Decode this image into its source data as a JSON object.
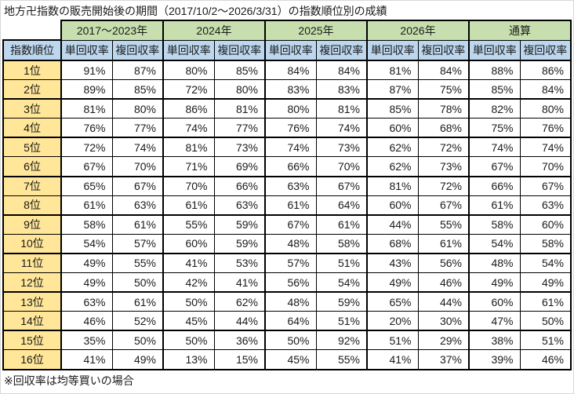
{
  "title": "地方卍指数の販売開始後の期間（2017/10/2～2026/3/31）の指数順位別の成績",
  "footnote": "※回収率は均等買いの場合",
  "colors": {
    "year_header_bg": "#C7DFAE",
    "sub_header_bg": "#BDD7EE",
    "rank_bg": "#FFE699",
    "border": "#000000",
    "canvas_border": "#D8D8D8"
  },
  "chart_data": {
    "type": "table",
    "title": "地方卍指数の販売開始後の期間（2017/10/2～2026/3/31）の指数順位別の成績",
    "rank_column_header": "指数順位",
    "year_groups": [
      "2017～2023年",
      "2024年",
      "2025年",
      "2026年",
      "通算"
    ],
    "sub_headers": [
      "単回収率",
      "複回収率"
    ],
    "rows": [
      {
        "rank": "1位",
        "values": [
          "91%",
          "87%",
          "80%",
          "85%",
          "84%",
          "84%",
          "81%",
          "84%",
          "88%",
          "86%"
        ]
      },
      {
        "rank": "2位",
        "values": [
          "89%",
          "85%",
          "72%",
          "80%",
          "83%",
          "83%",
          "87%",
          "75%",
          "85%",
          "84%"
        ]
      },
      {
        "rank": "3位",
        "values": [
          "81%",
          "80%",
          "86%",
          "81%",
          "80%",
          "81%",
          "85%",
          "78%",
          "82%",
          "80%"
        ]
      },
      {
        "rank": "4位",
        "values": [
          "76%",
          "77%",
          "74%",
          "77%",
          "76%",
          "74%",
          "60%",
          "68%",
          "75%",
          "76%"
        ]
      },
      {
        "rank": "5位",
        "values": [
          "72%",
          "74%",
          "81%",
          "73%",
          "74%",
          "73%",
          "62%",
          "72%",
          "74%",
          "74%"
        ]
      },
      {
        "rank": "6位",
        "values": [
          "67%",
          "70%",
          "71%",
          "69%",
          "66%",
          "70%",
          "62%",
          "73%",
          "67%",
          "70%"
        ]
      },
      {
        "rank": "7位",
        "values": [
          "65%",
          "67%",
          "70%",
          "66%",
          "63%",
          "67%",
          "81%",
          "72%",
          "66%",
          "67%"
        ]
      },
      {
        "rank": "8位",
        "values": [
          "61%",
          "63%",
          "61%",
          "63%",
          "61%",
          "64%",
          "60%",
          "67%",
          "61%",
          "63%"
        ]
      },
      {
        "rank": "9位",
        "values": [
          "58%",
          "61%",
          "55%",
          "59%",
          "67%",
          "61%",
          "44%",
          "55%",
          "58%",
          "60%"
        ]
      },
      {
        "rank": "10位",
        "values": [
          "54%",
          "57%",
          "60%",
          "59%",
          "48%",
          "58%",
          "68%",
          "61%",
          "54%",
          "58%"
        ]
      },
      {
        "rank": "11位",
        "values": [
          "49%",
          "55%",
          "41%",
          "53%",
          "57%",
          "51%",
          "43%",
          "56%",
          "48%",
          "54%"
        ]
      },
      {
        "rank": "12位",
        "values": [
          "49%",
          "50%",
          "42%",
          "41%",
          "56%",
          "54%",
          "49%",
          "46%",
          "49%",
          "49%"
        ]
      },
      {
        "rank": "13位",
        "values": [
          "63%",
          "61%",
          "50%",
          "62%",
          "48%",
          "59%",
          "65%",
          "44%",
          "60%",
          "61%"
        ]
      },
      {
        "rank": "14位",
        "values": [
          "46%",
          "52%",
          "45%",
          "44%",
          "64%",
          "51%",
          "20%",
          "30%",
          "47%",
          "50%"
        ]
      },
      {
        "rank": "15位",
        "values": [
          "35%",
          "50%",
          "50%",
          "36%",
          "50%",
          "92%",
          "51%",
          "29%",
          "38%",
          "51%"
        ]
      },
      {
        "rank": "16位",
        "values": [
          "41%",
          "49%",
          "13%",
          "15%",
          "45%",
          "55%",
          "41%",
          "37%",
          "39%",
          "46%"
        ]
      }
    ],
    "footnote": "※回収率は均等買いの場合"
  }
}
